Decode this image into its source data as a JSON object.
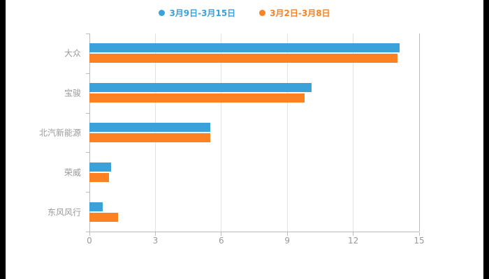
{
  "chart_data": {
    "type": "bar",
    "orientation": "horizontal",
    "title": "",
    "categories": [
      "大众",
      "宝骏",
      "北汽新能源",
      "荣威",
      "东风风行"
    ],
    "series": [
      {
        "name": "3月9日-3月15日",
        "color": "#3AA1DB",
        "values": [
          14.1,
          10.1,
          5.5,
          1.0,
          0.6
        ]
      },
      {
        "name": "3月2日-3月8日",
        "color": "#FB8122",
        "values": [
          14.0,
          9.8,
          5.5,
          0.9,
          1.3
        ]
      }
    ],
    "xlim": [
      0,
      15
    ],
    "xticks": [
      0,
      3,
      6,
      9,
      12,
      15
    ],
    "grid": true,
    "legend_position": "top",
    "xlabel": "",
    "ylabel": "",
    "colors": {
      "grid": "#e3e3e3",
      "axis": "#bcbcbc",
      "label": "#999999",
      "background": "#ffffff",
      "frame": "#000000"
    }
  }
}
